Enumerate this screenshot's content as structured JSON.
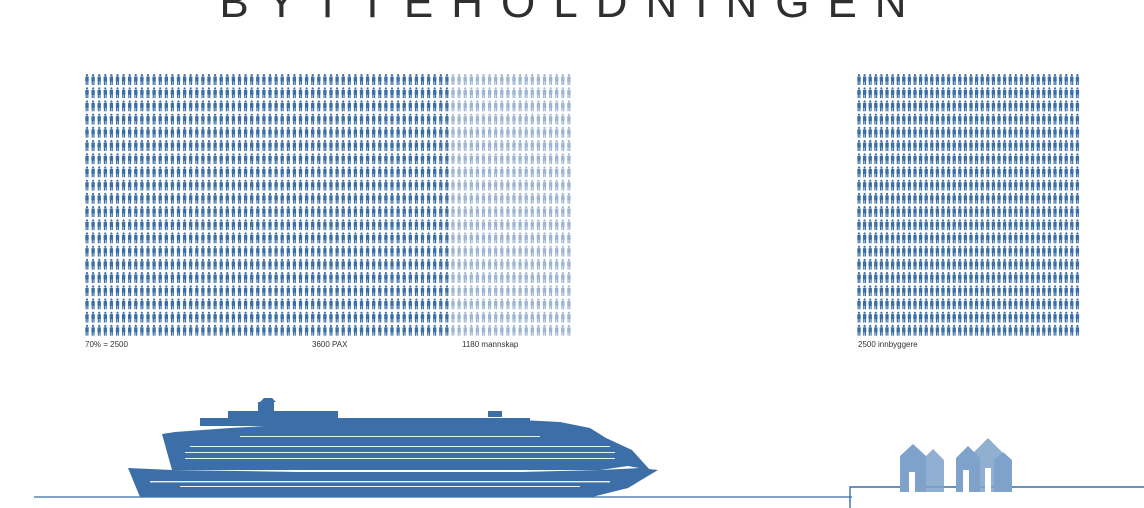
{
  "headline": "BYTTEHOLDNINGEN",
  "colors": {
    "passenger": "#3b6ea5",
    "crew": "#9db5d2",
    "resident": "#3b6ea5",
    "ship": "#3c6fa8",
    "houses": "#7ea2c9",
    "line": "#3b6ea5"
  },
  "icons": {
    "person": "person-icon",
    "ship": "cruise-ship-icon",
    "houses": "houses-icon"
  },
  "chart_data": [
    {
      "type": "pictogram",
      "categories": [
        "PAX",
        "mannskap"
      ],
      "values": [
        3600,
        1180
      ],
      "labels": [
        "70% = 2500",
        "3600 PAX",
        "1180 mannskap"
      ],
      "fractions": {
        "pax_of_total": 0.753,
        "crew_of_total": 0.247
      }
    },
    {
      "type": "pictogram",
      "categories": [
        "innbyggere"
      ],
      "values": [
        2500
      ],
      "labels": [
        "2500 innbyggere"
      ]
    }
  ]
}
